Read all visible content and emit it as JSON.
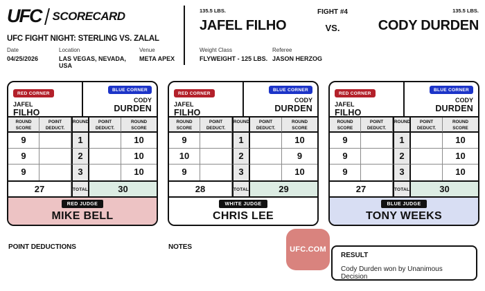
{
  "header": {
    "logo_brand": "UFC",
    "logo_label": "SCORECARD",
    "event_title": "UFC FIGHT NIGHT: STERLING VS. ZALAL",
    "details": [
      {
        "label": "Date",
        "value": "04/25/2026"
      },
      {
        "label": "Location",
        "value": "LAS VEGAS, NEVADA, USA"
      },
      {
        "label": "Venue",
        "value": "META APEX"
      }
    ],
    "red_fighter_weight": "135.5 LBS.",
    "red_fighter_name": "JAFEL FILHO",
    "fight_number": "FIGHT #4",
    "vs_label": "VS.",
    "blue_fighter_weight": "135.5 LBS.",
    "blue_fighter_name": "CODY DURDEN",
    "bout_details": [
      {
        "label": "Weight Class",
        "value": "FLYWEIGHT - 125 LBS."
      },
      {
        "label": "Referee",
        "value": "JASON HERZOG"
      }
    ]
  },
  "card_common": {
    "red_corner_label": "RED CORNER",
    "blue_corner_label": "BLUE CORNER",
    "red_first": "JAFEL",
    "red_last": "FILHO",
    "blue_first": "CODY",
    "blue_last": "DURDEN",
    "columns": [
      [
        "ROUND",
        "SCORE"
      ],
      [
        "POINT",
        "DEDUCT."
      ],
      [
        "ROUND",
        ""
      ],
      [
        "POINT",
        "DEDUCT."
      ],
      [
        "ROUND",
        "SCORE"
      ]
    ],
    "total_label": "TOTAL"
  },
  "scorecards": [
    {
      "judge_type": "RED JUDGE",
      "judge_name": "MIKE BELL",
      "rounds": [
        {
          "red": "9",
          "red_deduct": "",
          "round": "1",
          "blue_deduct": "",
          "blue": "10"
        },
        {
          "red": "9",
          "red_deduct": "",
          "round": "2",
          "blue_deduct": "",
          "blue": "10"
        },
        {
          "red": "9",
          "red_deduct": "",
          "round": "3",
          "blue_deduct": "",
          "blue": "10"
        }
      ],
      "red_total": "27",
      "blue_total": "30"
    },
    {
      "judge_type": "WHITE JUDGE",
      "judge_name": "CHRIS LEE",
      "rounds": [
        {
          "red": "9",
          "red_deduct": "",
          "round": "1",
          "blue_deduct": "",
          "blue": "10"
        },
        {
          "red": "10",
          "red_deduct": "",
          "round": "2",
          "blue_deduct": "",
          "blue": "9"
        },
        {
          "red": "9",
          "red_deduct": "",
          "round": "3",
          "blue_deduct": "",
          "blue": "10"
        }
      ],
      "red_total": "28",
      "blue_total": "29"
    },
    {
      "judge_type": "BLUE JUDGE",
      "judge_name": "TONY WEEKS",
      "rounds": [
        {
          "red": "9",
          "red_deduct": "",
          "round": "1",
          "blue_deduct": "",
          "blue": "10"
        },
        {
          "red": "9",
          "red_deduct": "",
          "round": "2",
          "blue_deduct": "",
          "blue": "10"
        },
        {
          "red": "9",
          "red_deduct": "",
          "round": "3",
          "blue_deduct": "",
          "blue": "10"
        }
      ],
      "red_total": "27",
      "blue_total": "30"
    }
  ],
  "footer": {
    "point_deductions_label": "POINT DEDUCTIONS",
    "notes_label": "NOTES",
    "ufc_com_label": "UFC.COM",
    "result_label": "RESULT",
    "result_text": "Cody Durden won by Unanimous Decision"
  },
  "colors": {
    "red_corner": "#b3202a",
    "blue_corner": "#1c34c8",
    "red_judge_bg": "#edc3c4",
    "white_judge_bg": "#ffffff",
    "blue_judge_bg": "#d8def3",
    "total_highlight": "#dcece3",
    "header_cell_bg": "#e9e9e9",
    "ufc_com_bg": "#d9837e"
  }
}
